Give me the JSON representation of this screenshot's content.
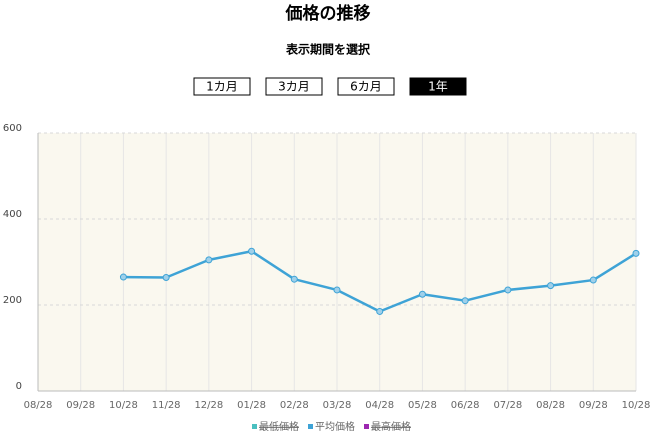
{
  "chart_data": {
    "type": "line",
    "title": "価格の推移",
    "controls": {
      "label": "表示期間を選択",
      "options": [
        "1カ月",
        "3カ月",
        "6カ月",
        "1年"
      ],
      "selected": 3
    },
    "categories": [
      "08/28",
      "09/28",
      "10/28",
      "11/28",
      "12/28",
      "01/28",
      "02/28",
      "03/28",
      "04/28",
      "05/28",
      "06/28",
      "07/28",
      "08/28",
      "09/28",
      "10/28"
    ],
    "series": [
      {
        "name": "最低価格",
        "color": "#4bc0c0",
        "hidden": true,
        "values": [
          null,
          null,
          null,
          null,
          null,
          null,
          null,
          null,
          null,
          null,
          null,
          null,
          null,
          null,
          null
        ]
      },
      {
        "name": "平均価格",
        "color": "#3ea3d6",
        "hidden": false,
        "values": [
          null,
          null,
          265,
          264,
          305,
          325,
          260,
          235,
          185,
          225,
          210,
          235,
          245,
          258,
          320
        ]
      },
      {
        "name": "最高価格",
        "color": "#9c27b0",
        "hidden": true,
        "values": [
          null,
          null,
          null,
          null,
          null,
          null,
          null,
          null,
          null,
          null,
          null,
          null,
          null,
          null,
          null
        ]
      }
    ],
    "ylim": [
      0,
      600
    ],
    "yticks": [
      0,
      200,
      400,
      600
    ],
    "grid": true,
    "background": "#faf8ef"
  }
}
